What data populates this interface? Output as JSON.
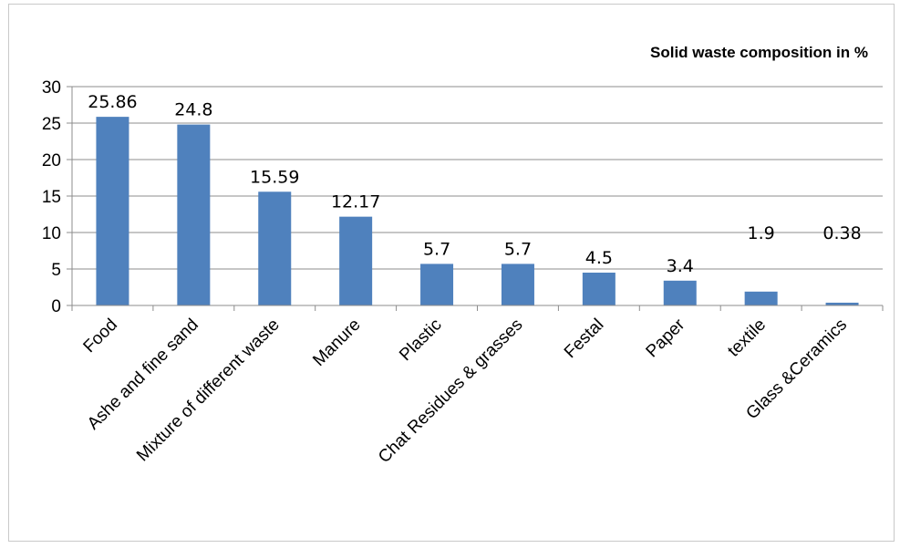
{
  "chart_data": {
    "type": "bar",
    "title": "Solid waste composition in %",
    "xlabel": "",
    "ylabel": "",
    "categories": [
      "Food",
      "Ashe and fine sand",
      "Mixture of different waste",
      "Manure",
      "Plastic",
      "Chat Residues  & grasses",
      "Festal",
      "Paper",
      "textile",
      "Glass &Ceramics"
    ],
    "values": [
      25.86,
      24.8,
      15.59,
      12.17,
      5.7,
      5.7,
      4.5,
      3.4,
      1.9,
      0.38
    ],
    "data_labels": [
      "25.86",
      "24.8",
      "15.59",
      "12.17",
      "5.7",
      "5.7",
      "4.5",
      "3.4",
      "1.9",
      "0.38"
    ],
    "ylim": [
      0,
      30
    ],
    "yticks": [
      0,
      5,
      10,
      15,
      20,
      25,
      30
    ],
    "grid": true,
    "legend": "none",
    "bar_color": "#4f81bd"
  }
}
